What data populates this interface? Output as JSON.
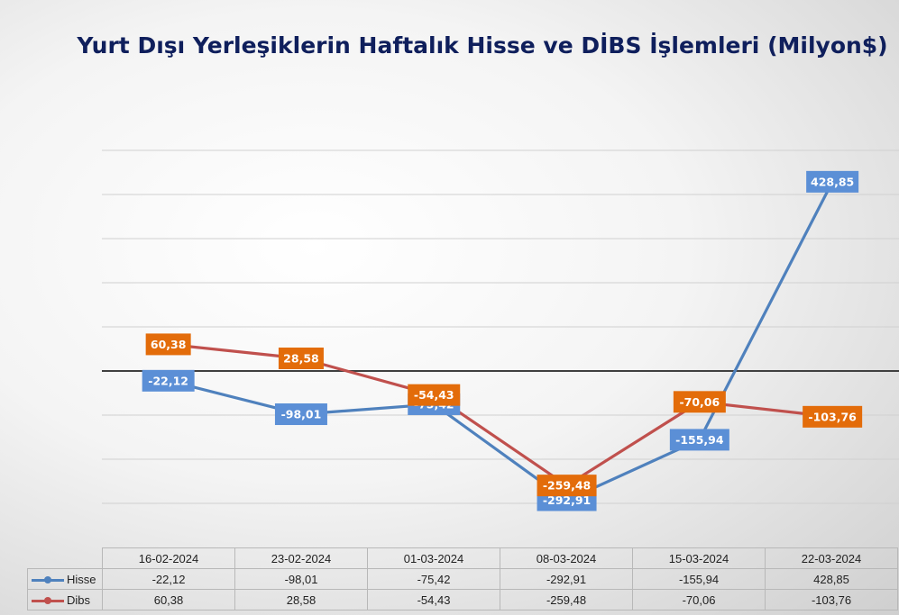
{
  "chart_data": {
    "type": "line",
    "title": "Yurt Dışı Yerleşiklerin Haftalık Hisse ve DİBS İşlemleri (Milyon$)",
    "categories": [
      "16-02-2024",
      "23-02-2024",
      "01-03-2024",
      "08-03-2024",
      "15-03-2024",
      "22-03-2024"
    ],
    "series": [
      {
        "name": "Hisse",
        "color": "#4f81bd",
        "label_color": "#5b8fd6",
        "values": [
          -22.12,
          -98.01,
          -75.42,
          -292.91,
          -155.94,
          428.85
        ],
        "labels": [
          "-22,12",
          "-98,01",
          "-75,42",
          "-292,91",
          "-155,94",
          "428,85"
        ]
      },
      {
        "name": "Dibs",
        "color": "#c0504d",
        "label_color": "#e36c0a",
        "values": [
          60.38,
          28.58,
          -54.43,
          -259.48,
          -70.06,
          -103.76
        ],
        "labels": [
          "60,38",
          "28,58",
          "-54,43",
          "-259,48",
          "-70,06",
          "-103,76"
        ]
      }
    ],
    "ylim": [
      -300,
      500
    ],
    "gridlines": true,
    "legend": "data-table"
  }
}
